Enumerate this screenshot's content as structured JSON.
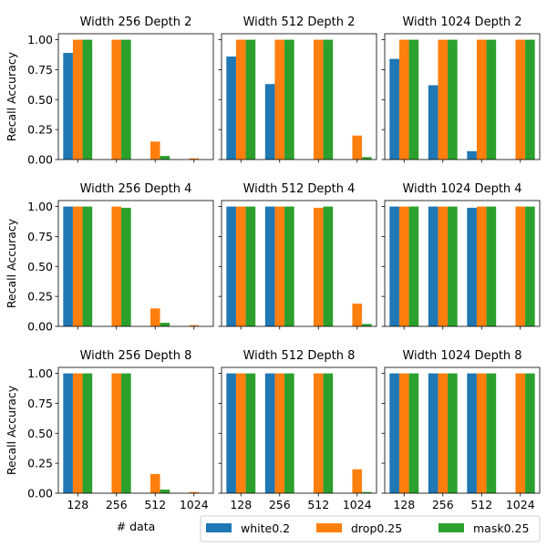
{
  "chart_data": {
    "type": "bar",
    "layout": "3x3 grid of subplots",
    "categories": [
      "128",
      "256",
      "512",
      "1024"
    ],
    "xlabel": "# data",
    "ylabel": "Recall Accuracy",
    "ylim": [
      0,
      1.05
    ],
    "yticks": [
      "0.00",
      "0.25",
      "0.50",
      "0.75",
      "1.00"
    ],
    "legend": {
      "placement": "bottom-right",
      "entries": [
        {
          "name": "white0.2",
          "color": "#1f77b4"
        },
        {
          "name": "drop0.25",
          "color": "#ff7f0e"
        },
        {
          "name": "mask0.25",
          "color": "#2ca02c"
        }
      ]
    },
    "panels": [
      {
        "title": "Width 256 Depth 2",
        "series": {
          "white0.2": [
            0.89,
            0,
            0,
            0
          ],
          "drop0.25": [
            1.0,
            1.0,
            0.15,
            0.01
          ],
          "mask0.25": [
            1.0,
            1.0,
            0.03,
            0
          ]
        }
      },
      {
        "title": "Width 512 Depth 2",
        "series": {
          "white0.2": [
            0.86,
            0.63,
            0,
            0
          ],
          "drop0.25": [
            1.0,
            1.0,
            1.0,
            0.2
          ],
          "mask0.25": [
            1.0,
            1.0,
            1.0,
            0.02
          ]
        }
      },
      {
        "title": "Width 1024 Depth 2",
        "series": {
          "white0.2": [
            0.84,
            0.62,
            0.07,
            0
          ],
          "drop0.25": [
            1.0,
            1.0,
            1.0,
            1.0
          ],
          "mask0.25": [
            1.0,
            1.0,
            1.0,
            1.0
          ]
        }
      },
      {
        "title": "Width 256 Depth 4",
        "series": {
          "white0.2": [
            1.0,
            0,
            0,
            0
          ],
          "drop0.25": [
            1.0,
            1.0,
            0.15,
            0.01
          ],
          "mask0.25": [
            1.0,
            0.99,
            0.03,
            0
          ]
        }
      },
      {
        "title": "Width 512 Depth 4",
        "series": {
          "white0.2": [
            1.0,
            1.0,
            0,
            0
          ],
          "drop0.25": [
            1.0,
            1.0,
            0.99,
            0.19
          ],
          "mask0.25": [
            1.0,
            1.0,
            1.0,
            0.02
          ]
        }
      },
      {
        "title": "Width 1024 Depth 4",
        "series": {
          "white0.2": [
            1.0,
            1.0,
            0.99,
            0
          ],
          "drop0.25": [
            1.0,
            1.0,
            1.0,
            1.0
          ],
          "mask0.25": [
            1.0,
            1.0,
            1.0,
            1.0
          ]
        }
      },
      {
        "title": "Width 256 Depth 8",
        "series": {
          "white0.2": [
            1.0,
            0,
            0,
            0
          ],
          "drop0.25": [
            1.0,
            1.0,
            0.16,
            0.01
          ],
          "mask0.25": [
            1.0,
            1.0,
            0.03,
            0
          ]
        }
      },
      {
        "title": "Width 512 Depth 8",
        "series": {
          "white0.2": [
            1.0,
            1.0,
            0,
            0
          ],
          "drop0.25": [
            1.0,
            1.0,
            1.0,
            0.2
          ],
          "mask0.25": [
            1.0,
            1.0,
            1.0,
            0.01
          ]
        }
      },
      {
        "title": "Width 1024 Depth 8",
        "series": {
          "white0.2": [
            1.0,
            1.0,
            1.0,
            0
          ],
          "drop0.25": [
            1.0,
            1.0,
            1.0,
            1.0
          ],
          "mask0.25": [
            1.0,
            1.0,
            1.0,
            1.0
          ]
        }
      }
    ]
  }
}
